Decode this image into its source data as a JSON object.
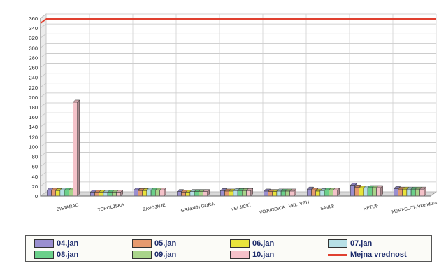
{
  "chart_data": {
    "type": "bar",
    "title": "",
    "xlabel": "",
    "ylabel": "",
    "ylim": [
      0,
      360
    ],
    "yticks": [
      0,
      20,
      40,
      60,
      80,
      100,
      120,
      140,
      160,
      180,
      200,
      220,
      240,
      260,
      280,
      300,
      320,
      340,
      360
    ],
    "grid": true,
    "bar_style": "3d",
    "categories": [
      "BISTARAC",
      "TOPOLJSKA",
      "ZAVOJNJE",
      "GRAĐAN GORA",
      "VELJIČIĆ",
      "VOJVODICA - VEL. VRH",
      "SAVLE",
      "RETUE",
      "MERI-SOTI-Arkendura"
    ],
    "series": [
      {
        "name": "04.jan",
        "color": "#9a8fd0",
        "values": [
          12,
          8,
          12,
          9,
          11,
          10,
          14,
          22,
          15
        ]
      },
      {
        "name": "05.jan",
        "color": "#e69a6f",
        "values": [
          12,
          8,
          11,
          8,
          10,
          9,
          12,
          18,
          14
        ]
      },
      {
        "name": "06.jan",
        "color": "#e8e43a",
        "values": [
          11,
          8,
          11,
          8,
          10,
          9,
          10,
          16,
          14
        ]
      },
      {
        "name": "07.jan",
        "color": "#b7e0e6",
        "values": [
          12,
          8,
          12,
          9,
          11,
          10,
          11,
          16,
          14
        ]
      },
      {
        "name": "08.jan",
        "color": "#6bd08a",
        "values": [
          12,
          8,
          12,
          9,
          11,
          10,
          12,
          17,
          14
        ]
      },
      {
        "name": "09.jan",
        "color": "#a9d48a",
        "values": [
          12,
          8,
          12,
          9,
          11,
          10,
          12,
          17,
          14
        ]
      },
      {
        "name": "10.jan",
        "color": "#f4c2c9",
        "values": [
          190,
          8,
          12,
          9,
          11,
          10,
          12,
          17,
          14
        ]
      }
    ],
    "reference_line": {
      "name": "Mejna vrednost",
      "value": 350,
      "color": "#e04030"
    },
    "legend_position": "bottom"
  }
}
